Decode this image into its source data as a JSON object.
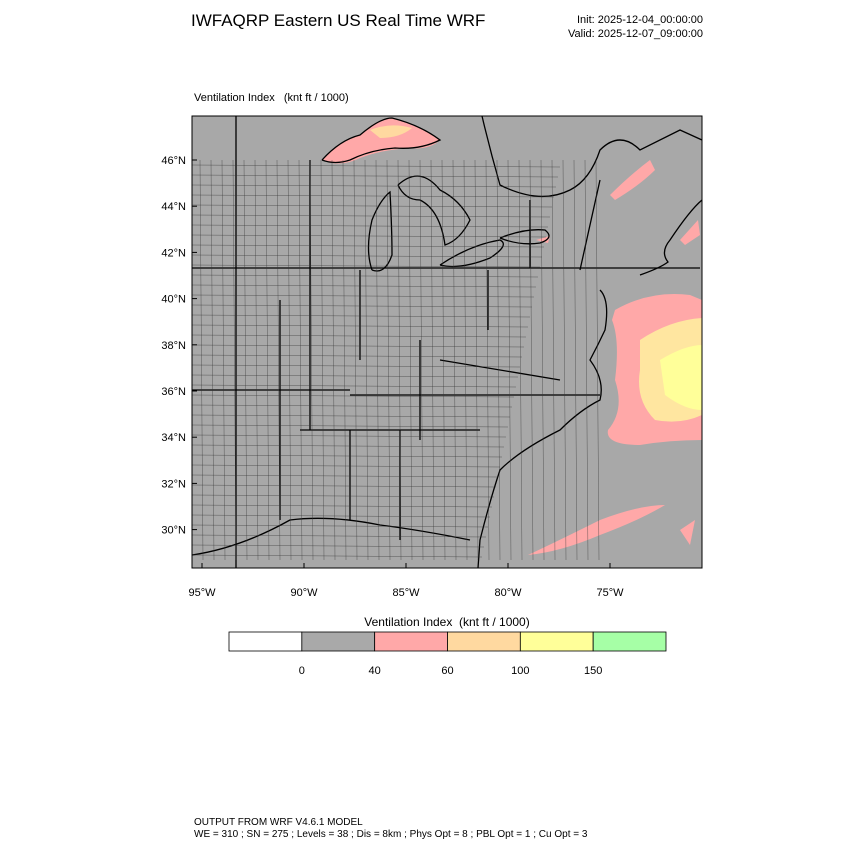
{
  "header": {
    "title": "IWFAQRP Eastern US Real Time WRF",
    "init": "Init: 2025-12-04_00:00:00",
    "valid": "Valid: 2025-12-07_09:00:00"
  },
  "map": {
    "label": "Ventilation Index   (knt ft / 1000)",
    "lat_labels": [
      "46°N",
      "44°N",
      "42°N",
      "40°N",
      "38°N",
      "36°N",
      "34°N",
      "32°N",
      "30°N"
    ],
    "lon_labels": [
      "95°W",
      "90°W",
      "85°W",
      "80°W",
      "75°W"
    ]
  },
  "colorbar": {
    "title": "Ventilation Index  (knt ft / 1000)",
    "colors": [
      "#ffffff",
      "#a9a9a9",
      "#ffa8a8",
      "#ffd9a0",
      "#ffff99",
      "#a6ffa6"
    ],
    "labels": [
      "0",
      "40",
      "60",
      "100",
      "150"
    ]
  },
  "footer": {
    "line1": "OUTPUT FROM WRF V4.6.1 MODEL",
    "line2": "WE = 310 ; SN = 275 ; Levels = 38 ; Dis = 8km ; Phys Opt = 8 ; PBL Opt = 1 ; Cu Opt = 3"
  }
}
